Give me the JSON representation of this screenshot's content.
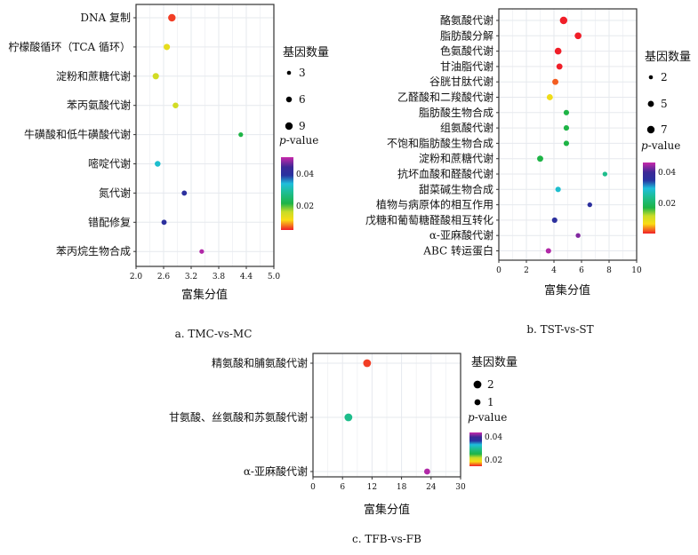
{
  "chart_data": [
    {
      "type": "scatter",
      "caption": "a.  TMC-vs-MC",
      "xlabel": "富集分值",
      "xlim": [
        2.0,
        5.0
      ],
      "xticks": [
        "2.0",
        "2.6",
        "3.2",
        "3.8",
        "4.4",
        "5.0"
      ],
      "categories": [
        "DNA 复制",
        "柠檬酸循环（TCA 循环）",
        "淀粉和蔗糖代谢",
        "苯丙氨酸代谢",
        "牛磺酸和低牛磺酸代谢",
        "嘧啶代谢",
        "氮代谢",
        "错配修复",
        "苯丙烷生物合成"
      ],
      "x": [
        2.78,
        2.67,
        2.43,
        2.86,
        4.28,
        2.47,
        3.05,
        2.61,
        3.43
      ],
      "gene_count": [
        9,
        7,
        7,
        6,
        4,
        6,
        5,
        5,
        4
      ],
      "p_value": [
        0.005,
        0.012,
        0.014,
        0.014,
        0.02,
        0.031,
        0.038,
        0.038,
        0.047
      ],
      "size_legend_title": "基因数量",
      "size_legend": [
        "3",
        "6",
        "9"
      ],
      "size_legend_values": [
        3,
        6,
        9
      ],
      "color_legend_title": "p-value",
      "color_ticks": [
        "0.04",
        "0.02"
      ]
    },
    {
      "type": "scatter",
      "caption": "b.  TST-vs-ST",
      "xlabel": "富集分值",
      "xlim": [
        0,
        10
      ],
      "xticks": [
        "0",
        "2",
        "4",
        "6",
        "8",
        "10"
      ],
      "categories": [
        "酪氨酸代谢",
        "脂肪酸分解",
        "色氨酸代谢",
        "甘油脂代谢",
        "谷胱甘肽代谢",
        "乙醛酸和二羧酸代谢",
        "脂肪酸生物合成",
        "组氨酸代谢",
        "不饱和脂肪酸生物合成",
        "淀粉和蔗糖代谢",
        "抗坏血酸和醛酸代谢",
        "甜菜碱生物合成",
        "植物与病原体的相互作用",
        "戊糖和葡萄糖醛酸相互转化",
        "α-亚麻酸代谢",
        "ABC 转运蛋白"
      ],
      "x": [
        4.7,
        5.75,
        4.3,
        4.4,
        4.1,
        3.7,
        4.9,
        4.9,
        4.9,
        3.0,
        7.7,
        4.3,
        6.6,
        4.05,
        5.75,
        3.6
      ],
      "gene_count": [
        7,
        6,
        6,
        5,
        5,
        5,
        4,
        4,
        4,
        5,
        3,
        4,
        3,
        4,
        3,
        4
      ],
      "p_value": [
        0.004,
        0.004,
        0.004,
        0.004,
        0.006,
        0.011,
        0.02,
        0.02,
        0.02,
        0.02,
        0.026,
        0.031,
        0.038,
        0.038,
        0.045,
        0.047
      ],
      "size_legend_title": "基因数量",
      "size_legend": [
        "2",
        "5",
        "7"
      ],
      "size_legend_values": [
        2,
        5,
        7
      ],
      "color_legend_title": "p-value",
      "color_ticks": [
        "0.04",
        "0.02"
      ]
    },
    {
      "type": "scatter",
      "caption": "c.  TFB-vs-FB",
      "xlabel": "富集分值",
      "xlim": [
        0,
        30
      ],
      "xticks": [
        "0",
        "6",
        "12",
        "18",
        "24",
        "30"
      ],
      "categories": [
        "精氨酸和脯氨酸代谢",
        "甘氨酸、丝氨酸和苏氨酸代谢",
        "α-亚麻酸代谢"
      ],
      "x": [
        11,
        7.2,
        23.2
      ],
      "gene_count": [
        2,
        2,
        1
      ],
      "p_value": [
        0.005,
        0.026,
        0.047
      ],
      "size_legend_title": "基因数量",
      "size_legend": [
        "2",
        "1"
      ],
      "size_legend_values": [
        2,
        1
      ],
      "color_legend_title": "p-value",
      "color_ticks": [
        "0.04",
        "0.02"
      ]
    }
  ]
}
